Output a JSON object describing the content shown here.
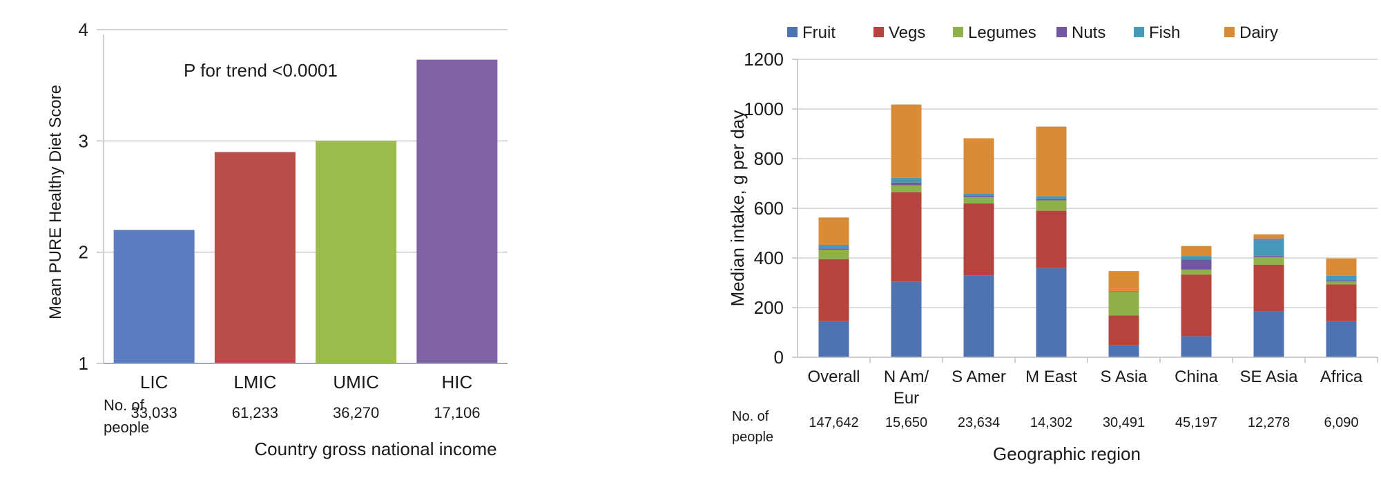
{
  "chart_data": [
    {
      "type": "bar",
      "title": "",
      "annotation": "P for trend <0.0001",
      "ylabel": "Mean PURE Healthy Diet Score",
      "xlabel": "Country gross national income",
      "ylim": [
        1,
        4
      ],
      "yticks": [
        "1",
        "2",
        "3",
        "4"
      ],
      "categories": [
        "LIC",
        "LMIC",
        "UMIC",
        "HIC"
      ],
      "values": [
        2.2,
        2.9,
        3.0,
        3.73
      ],
      "colors": [
        "#5b7dbf",
        "#b84d4a",
        "#9bbb4c",
        "#8062a3"
      ],
      "people_label": [
        "No. of",
        "people"
      ],
      "people": [
        "33,033",
        "61,233",
        "36,270",
        "17,106"
      ],
      "grid": true
    },
    {
      "type": "bar",
      "stacked": true,
      "ylabel": "Median intake, g per day",
      "xlabel": "Geographic region",
      "ylim": [
        0,
        1200
      ],
      "yticks": [
        "0",
        "200",
        "400",
        "600",
        "800",
        "1000",
        "1200"
      ],
      "categories": [
        [
          "Overall"
        ],
        [
          "N Am/",
          "Eur"
        ],
        [
          "S Amer"
        ],
        [
          "M East"
        ],
        [
          "S Asia"
        ],
        [
          "China"
        ],
        [
          "SE Asia"
        ],
        [
          "Africa"
        ]
      ],
      "series": [
        {
          "name": "Fruit",
          "color": "#4f72b0",
          "values": [
            145,
            305,
            330,
            360,
            48,
            85,
            185,
            145
          ]
        },
        {
          "name": "Vegs",
          "color": "#b5443f",
          "values": [
            250,
            360,
            290,
            230,
            120,
            248,
            188,
            148
          ]
        },
        {
          "name": "Legumes",
          "color": "#8fb04b",
          "values": [
            38,
            28,
            25,
            42,
            95,
            20,
            30,
            12
          ]
        },
        {
          "name": "Nuts",
          "color": "#7357a0",
          "values": [
            5,
            10,
            5,
            5,
            2,
            40,
            5,
            5
          ]
        },
        {
          "name": "Fish",
          "color": "#4799b8",
          "values": [
            15,
            20,
            10,
            12,
            2,
            15,
            70,
            18
          ]
        },
        {
          "name": "Dairy",
          "color": "#d98b35",
          "values": [
            110,
            295,
            222,
            280,
            80,
            40,
            17,
            70
          ]
        }
      ],
      "people_label": [
        "No. of",
        "people"
      ],
      "people": [
        "147,642",
        "15,650",
        "23,634",
        "14,302",
        "30,491",
        "45,197",
        "12,278",
        "6,090"
      ],
      "legend": "top",
      "grid": true
    }
  ]
}
